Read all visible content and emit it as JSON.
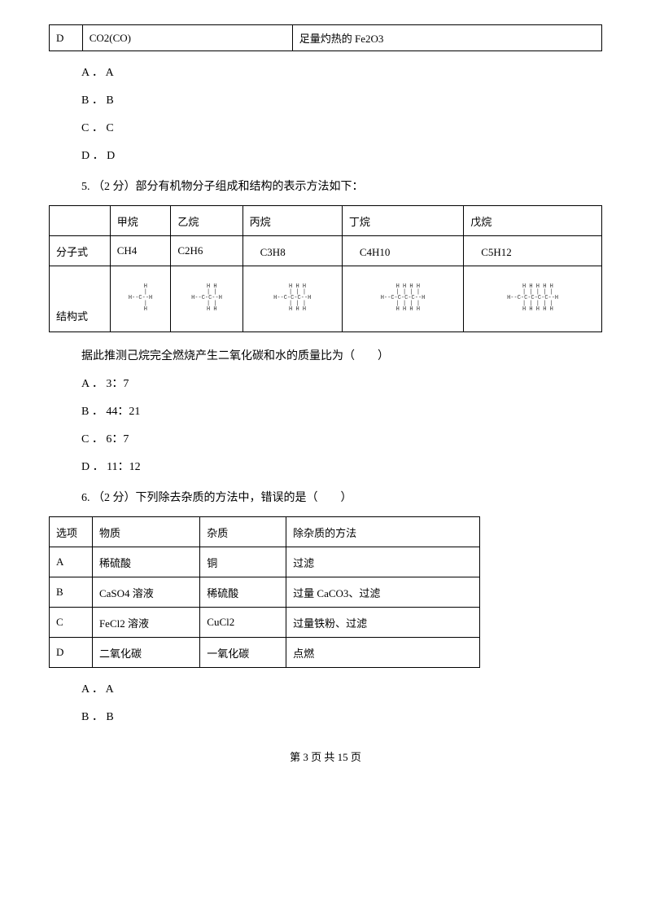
{
  "table1": {
    "row": {
      "c1": "D",
      "c2": "CO2(CO)",
      "c3": "足量灼热的 Fe2O3"
    }
  },
  "q4": {
    "optA": "A ． A",
    "optB": "B ． B",
    "optC": "C ． C",
    "optD": "D ． D"
  },
  "q5": {
    "stem": "5. （2 分）部分有机物分子组成和结构的表示方法如下：",
    "table": {
      "h1": "",
      "h2": "甲烷",
      "h3": "乙烷",
      "h4": "丙烷",
      "h5": "丁烷",
      "h6": "戊烷",
      "r1c1": "分子式",
      "r1c2": "CH4",
      "r1c3": "C2H6",
      "r1c4": "　C3H8",
      "r1c5": "　C4H10",
      "r1c6": "　C5H12",
      "r2c1": "结构式"
    },
    "struct": {
      "s1": "   H\n   |\nH--C--H\n   |\n   H",
      "s2": "   H H\n   | |\nH--C-C--H\n   | |\n   H H",
      "s3": "   H H H\n   | | |\nH--C-C-C--H\n   | | |\n   H H H",
      "s4": "   H H H H\n   | | | |\nH--C-C-C-C--H\n   | | | |\n   H H H H",
      "s5": "   H H H H H\n   | | | | |\nH--C-C-C-C-C--H\n   | | | | |\n   H H H H H"
    },
    "postText": "据此推测己烷完全燃烧产生二氧化碳和水的质量比为（　　）",
    "optA": "A ． 3：7",
    "optB": "B ． 44：21",
    "optC": "C ． 6：7",
    "optD": "D ． 11：12"
  },
  "q6": {
    "stem": "6. （2 分）下列除去杂质的方法中，错误的是（　　）",
    "table": {
      "h1": "选项",
      "h2": "物质",
      "h3": "杂质",
      "h4": "除杂质的方法",
      "rA1": "A",
      "rA2": "稀硫酸",
      "rA3": "铜",
      "rA4": "过滤",
      "rB1": "B",
      "rB2": "CaSO4 溶液",
      "rB3": "稀硫酸",
      "rB4": "过量 CaCO3、过滤",
      "rC1": "C",
      "rC2": "FeCl2 溶液",
      "rC3": "CuCl2",
      "rC4": "过量铁粉、过滤",
      "rD1": "D",
      "rD2": "二氧化碳",
      "rD3": "一氧化碳",
      "rD4": "点燃"
    },
    "optA": "A ． A",
    "optB": "B ． B"
  },
  "footer": "第 3 页 共 15 页"
}
